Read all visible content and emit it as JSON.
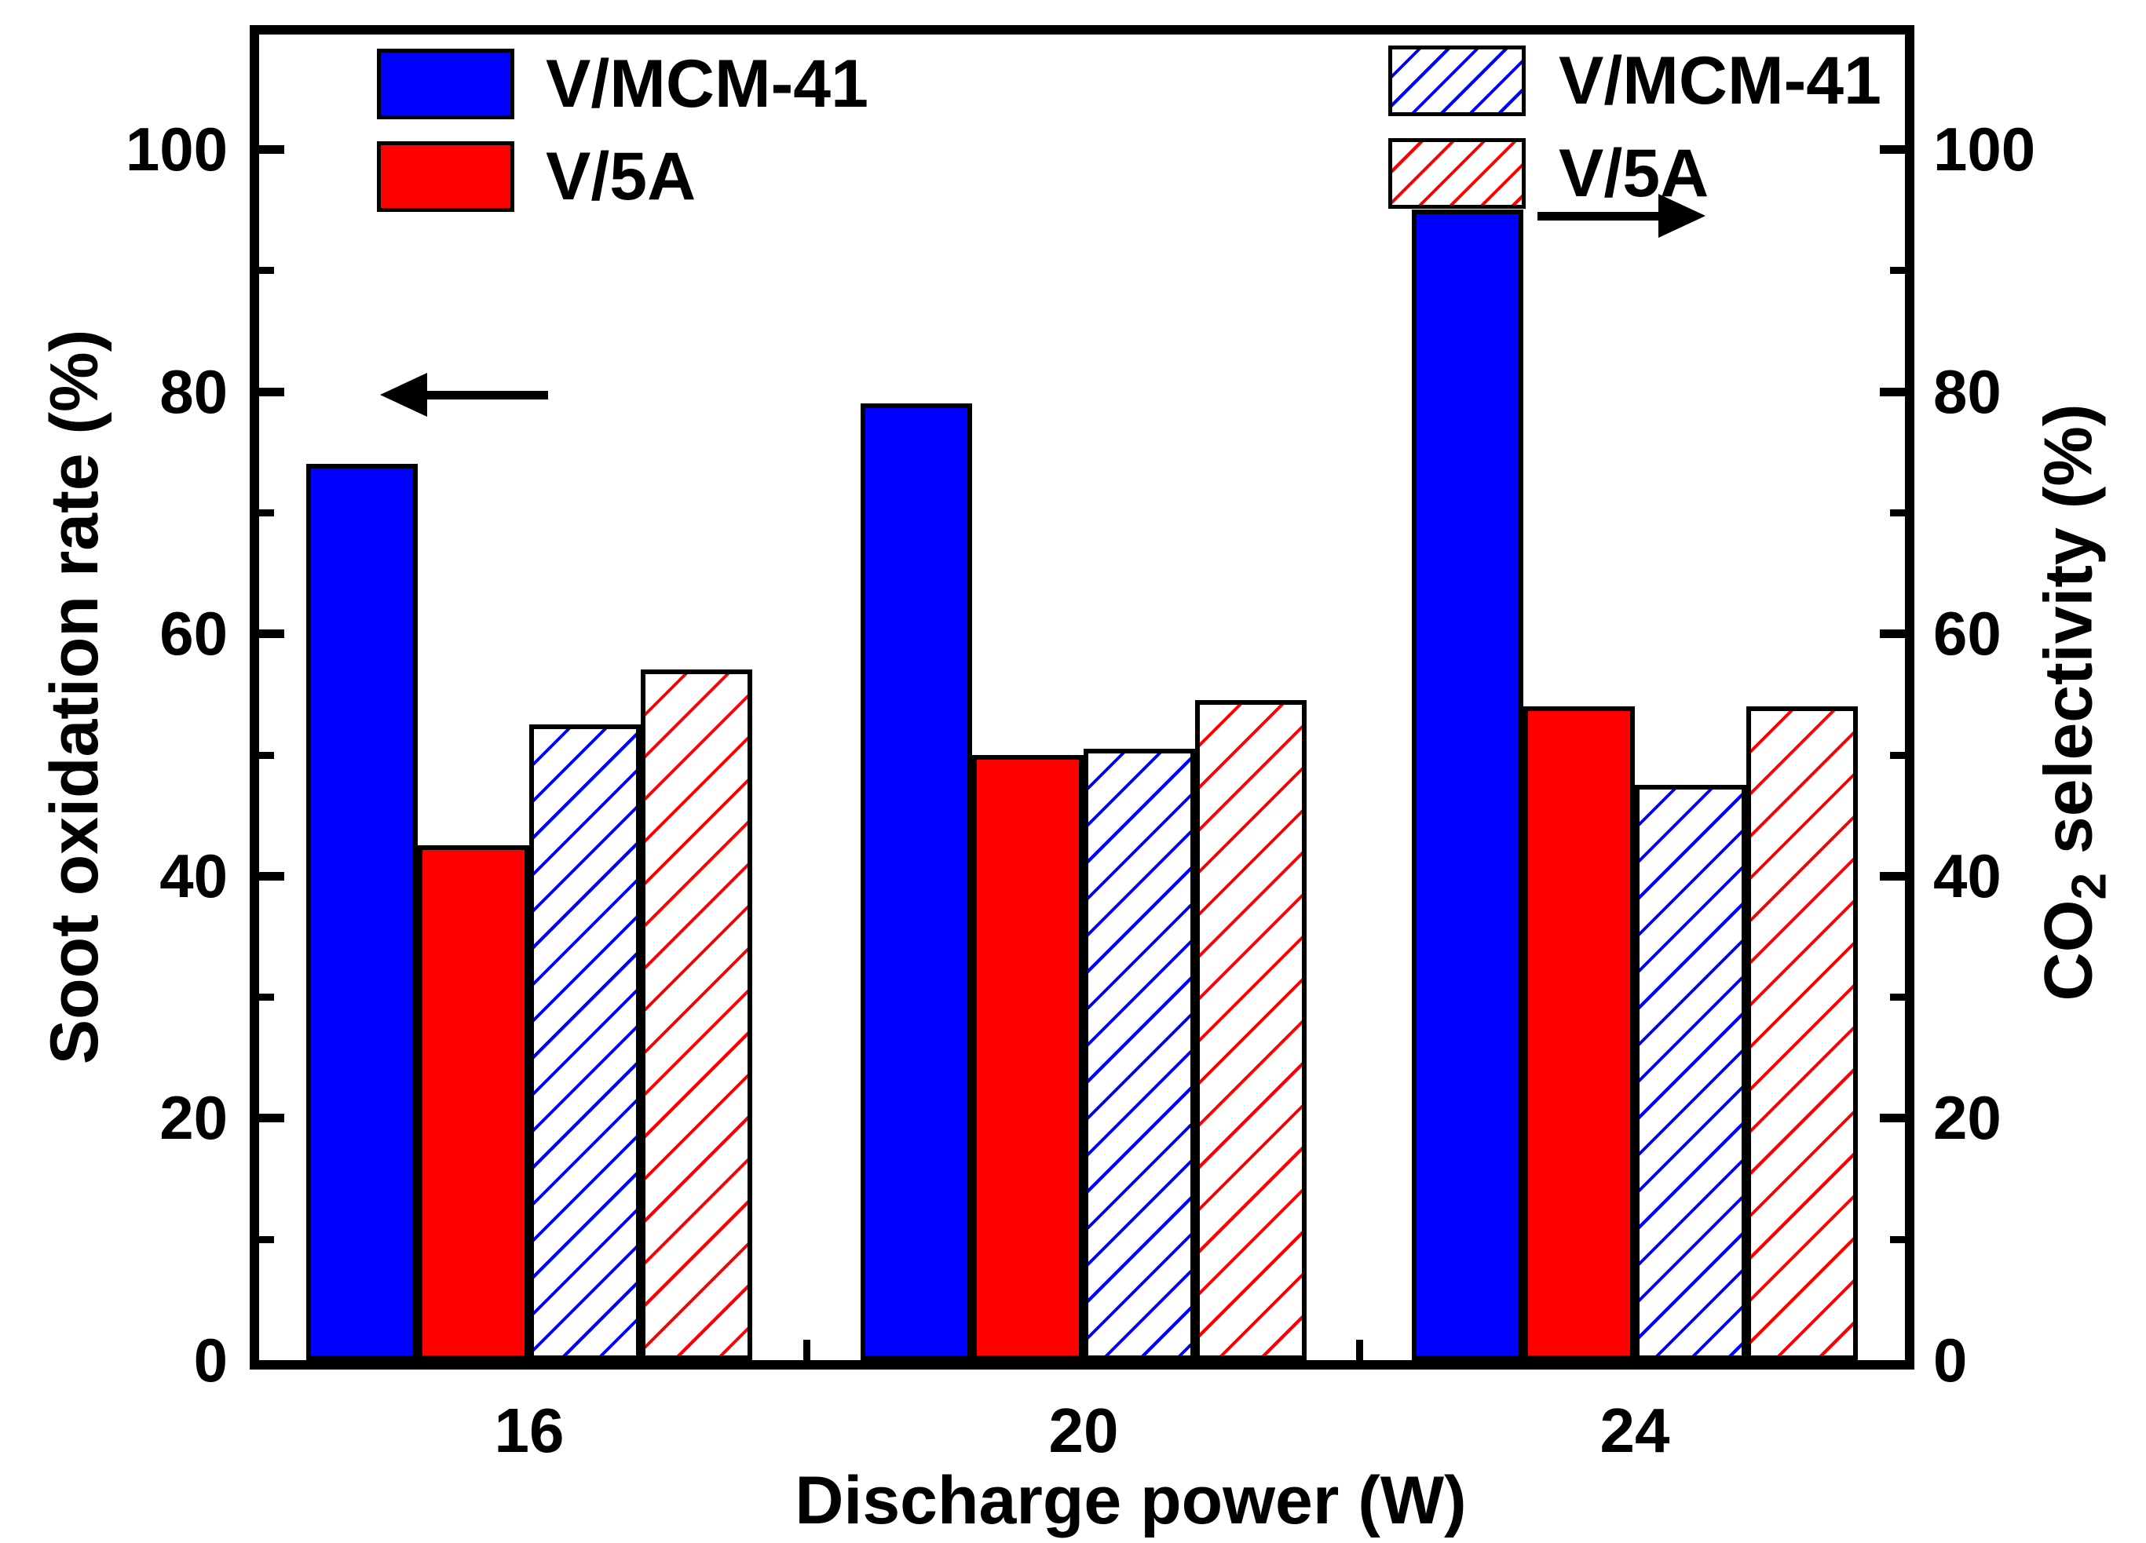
{
  "axes": {
    "left_title": "Soot oxidation rate (%)",
    "right_title_pre": "CO",
    "right_title_sub": "2",
    "right_title_post": " selectivity (%)",
    "x_title": "Discharge power (W)"
  },
  "legend_left": {
    "item1": "V/MCM-41",
    "item2": "V/5A",
    "arrow_direction": "left",
    "applies_to": "left axis (solid bars)"
  },
  "legend_right": {
    "item1": "V/MCM-41",
    "item2": "V/5A",
    "arrow_direction": "right",
    "applies_to": "right axis (hatched bars)"
  },
  "colors": {
    "blue": "#0000FF",
    "red": "#FF0000",
    "axis": "#000000",
    "background": "#FFFFFF"
  },
  "chart_data": {
    "type": "bar",
    "title": "",
    "xlabel": "Discharge power (W)",
    "ylabel_left": "Soot oxidation rate (%)",
    "ylabel_right": "CO2 selectivity (%)",
    "categories": [
      "16",
      "20",
      "24"
    ],
    "ylim": [
      0,
      109.5
    ],
    "yticks": [
      0,
      20,
      40,
      60,
      80,
      100
    ],
    "y_minor_ticks": [
      10,
      30,
      50,
      70,
      90
    ],
    "grid": false,
    "legend_position": "top-left and top-right inside plot",
    "series": [
      {
        "name": "V/MCM-41",
        "axis": "left",
        "style": "solid",
        "color": "#0000FF",
        "values": [
          74,
          79,
          95
        ]
      },
      {
        "name": "V/5A",
        "axis": "left",
        "style": "solid",
        "color": "#FF0000",
        "values": [
          42.5,
          50,
          54
        ]
      },
      {
        "name": "V/MCM-41",
        "axis": "right",
        "style": "hatched",
        "color": "#0000FF",
        "values": [
          52.5,
          50.5,
          47.5
        ]
      },
      {
        "name": "V/5A",
        "axis": "right",
        "style": "hatched",
        "color": "#FF0000",
        "values": [
          57,
          54.5,
          54
        ]
      }
    ]
  }
}
